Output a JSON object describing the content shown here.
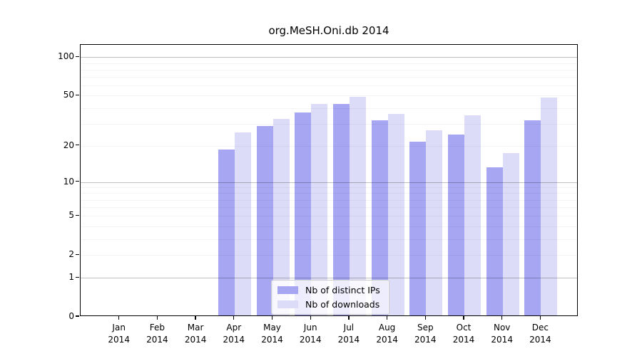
{
  "title": "org.MeSH.Oni.db 2014",
  "colors": {
    "bar_distinct_ips": "#a6a6f2",
    "bar_downloads": "#dcdcf8",
    "axis": "#000000",
    "grid_major": "#c7c7c7",
    "grid_minor": "#f2f2f2",
    "legend_border": "#cccccc"
  },
  "legend": {
    "items": [
      {
        "label": "Nb of distinct IPs",
        "color": "#a6a6f2"
      },
      {
        "label": "Nb of downloads",
        "color": "#dcdcf8"
      }
    ]
  },
  "chart_data": {
    "type": "bar",
    "title": "org.MeSH.Oni.db 2014",
    "xlabel": "",
    "ylabel": "",
    "year_label": "2014",
    "scale": "log1p",
    "ylim": [
      0,
      125
    ],
    "grid": "on",
    "legend_position": "lower center",
    "categories": [
      "Jan",
      "Feb",
      "Mar",
      "Apr",
      "May",
      "Jun",
      "Jul",
      "Aug",
      "Sep",
      "Oct",
      "Nov",
      "Dec"
    ],
    "series": [
      {
        "name": "Nb of distinct IPs",
        "values": [
          0,
          0,
          0,
          18,
          28,
          36,
          42,
          31,
          21,
          24,
          13,
          31
        ]
      },
      {
        "name": "Nb of downloads",
        "values": [
          0,
          0,
          0,
          25,
          32,
          42,
          48,
          35,
          26,
          34,
          17,
          47
        ]
      }
    ],
    "yticks": [
      100,
      50,
      20,
      10,
      5,
      2,
      1,
      0
    ],
    "major_gridlines": [
      1,
      10,
      100
    ],
    "minor_gridlines": [
      2,
      3,
      4,
      5,
      6,
      7,
      8,
      9,
      20,
      30,
      40,
      50,
      60,
      70,
      80,
      90
    ]
  }
}
